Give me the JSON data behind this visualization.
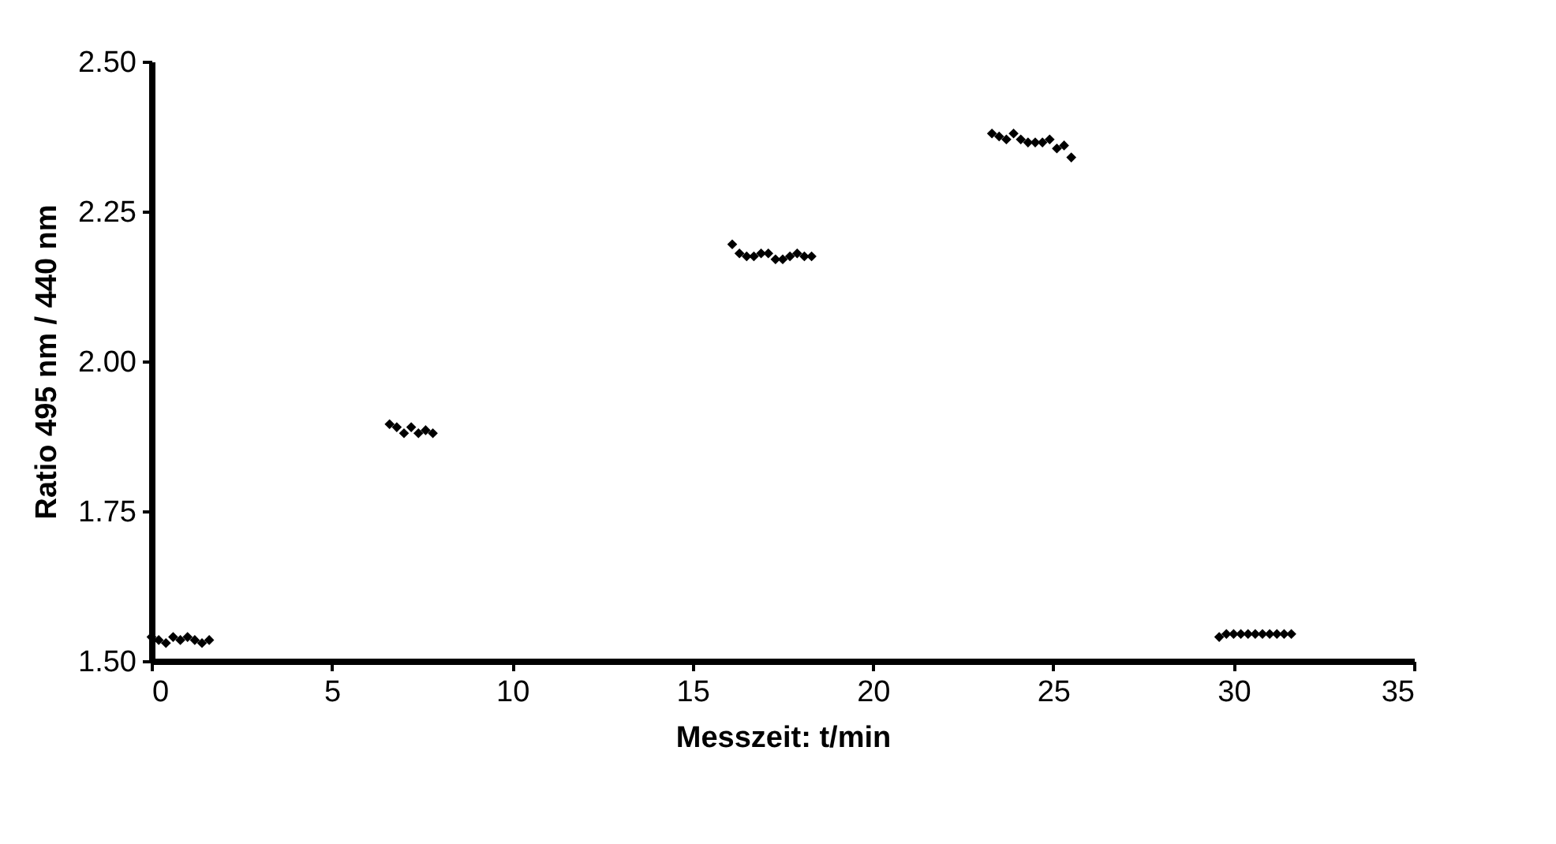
{
  "chart_data": {
    "type": "scatter",
    "xlabel": "Messzeit: t/min",
    "ylabel": "Ratio 495 nm / 440 nm",
    "x": [
      0.0,
      0.2,
      0.4,
      0.6,
      0.8,
      1.0,
      1.2,
      1.4,
      1.6,
      6.6,
      6.8,
      7.0,
      7.2,
      7.4,
      7.6,
      7.8,
      16.1,
      16.3,
      16.5,
      16.7,
      16.9,
      17.1,
      17.3,
      17.5,
      17.7,
      17.9,
      18.1,
      18.3,
      23.3,
      23.5,
      23.7,
      23.9,
      24.1,
      24.3,
      24.5,
      24.7,
      24.9,
      25.1,
      25.3,
      25.5,
      29.6,
      29.8,
      30.0,
      30.2,
      30.4,
      30.6,
      30.8,
      31.0,
      31.2,
      31.4,
      31.6
    ],
    "series": [
      {
        "color": "#000000",
        "values": [
          1.54,
          1.535,
          1.53,
          1.54,
          1.535,
          1.54,
          1.535,
          1.53,
          1.535,
          1.895,
          1.89,
          1.88,
          1.89,
          1.88,
          1.885,
          1.88,
          2.195,
          2.18,
          2.175,
          2.175,
          2.18,
          2.18,
          2.17,
          2.17,
          2.175,
          2.18,
          2.175,
          2.175,
          2.38,
          2.375,
          2.37,
          2.38,
          2.37,
          2.365,
          2.365,
          2.365,
          2.37,
          2.355,
          2.36,
          2.34,
          1.54,
          1.545,
          1.545,
          1.545,
          1.545,
          1.545,
          1.545,
          1.545,
          1.545,
          1.545,
          1.545
        ]
      }
    ],
    "xlim": [
      0,
      35
    ],
    "xticks": [
      0,
      5,
      10,
      15,
      20,
      25,
      30,
      35
    ],
    "ylim": [
      1.5,
      2.5
    ],
    "yticks": [
      {
        "value": 1.5,
        "label": "1.50"
      },
      {
        "value": 1.75,
        "label": "1.75"
      },
      {
        "value": 2.0,
        "label": "2.00"
      },
      {
        "value": 2.25,
        "label": "2.25"
      },
      {
        "value": 2.5,
        "label": "2.50"
      }
    ],
    "marker": "diamond",
    "grid": false,
    "legend": false
  }
}
